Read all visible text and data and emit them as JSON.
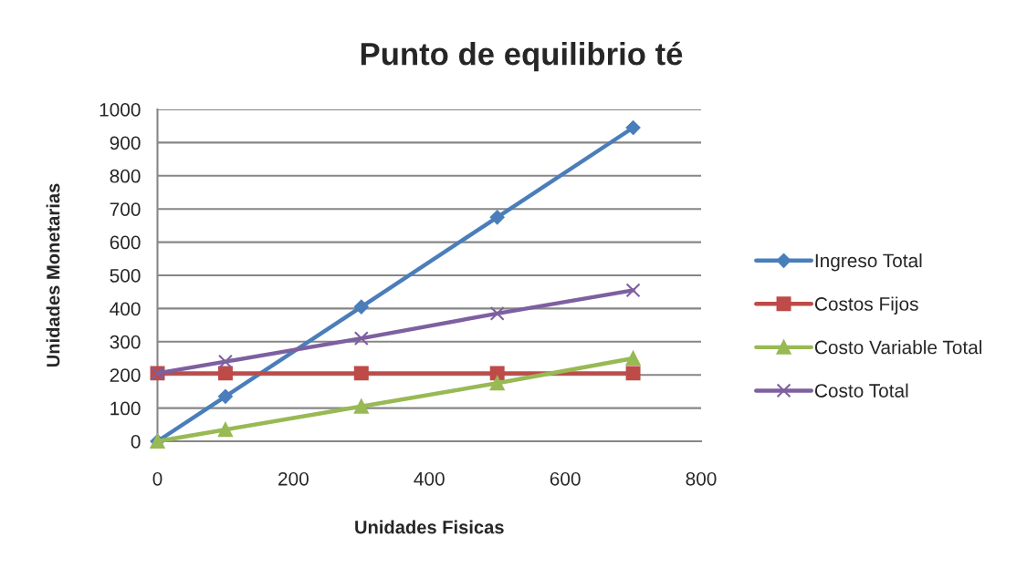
{
  "chart_data": {
    "type": "line",
    "title": "Punto de equilibrio té",
    "xlabel": "Unidades Fisicas",
    "ylabel": "Unidades Monetarias",
    "x": [
      0,
      100,
      300,
      500,
      700
    ],
    "series": [
      {
        "name": "Ingreso Total",
        "color": "#4a7ebb",
        "marker": "diamond",
        "values": [
          0,
          135,
          405,
          675,
          945
        ]
      },
      {
        "name": "Costos Fijos",
        "color": "#be4b48",
        "marker": "square",
        "values": [
          205,
          205,
          205,
          205,
          205
        ]
      },
      {
        "name": "Costo Variable Total",
        "color": "#98b954",
        "marker": "triangle",
        "values": [
          0,
          35,
          105,
          175,
          250
        ]
      },
      {
        "name": "Costo Total",
        "color": "#7d60a0",
        "marker": "cross",
        "values": [
          205,
          240,
          310,
          385,
          455
        ]
      }
    ],
    "xlim": [
      0,
      800
    ],
    "xticks": [
      0,
      200,
      400,
      600,
      800
    ],
    "ylim": [
      0,
      1000
    ],
    "yticks": [
      0,
      100,
      200,
      300,
      400,
      500,
      600,
      700,
      800,
      900,
      1000
    ],
    "grid": "y",
    "legend": "right",
    "line_style": "solid"
  }
}
